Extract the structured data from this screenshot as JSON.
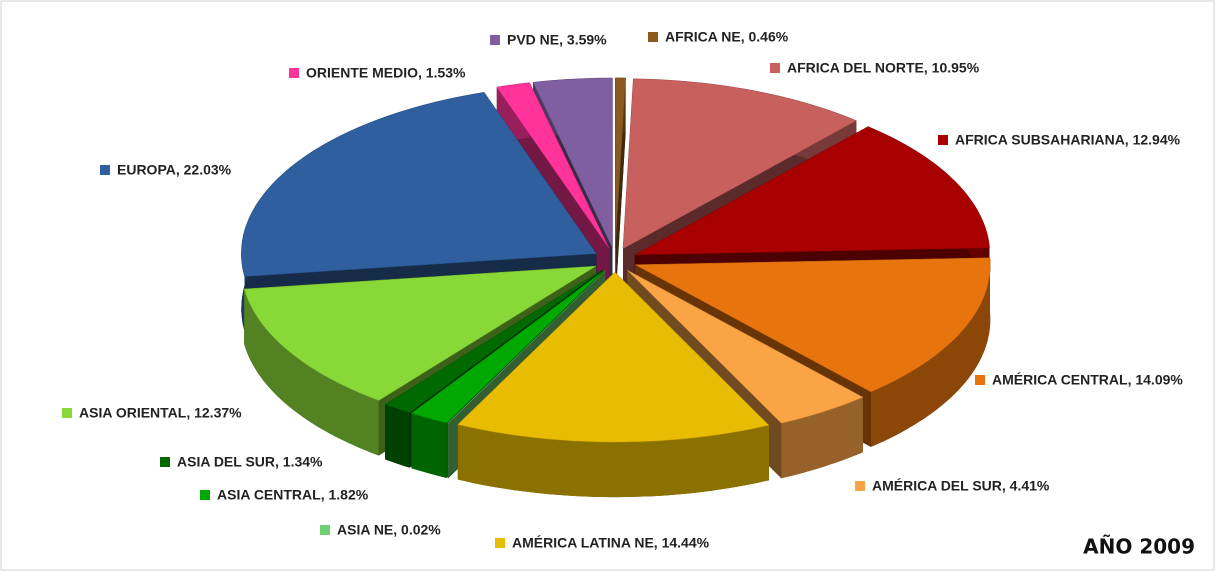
{
  "chart_data": {
    "type": "pie3d",
    "title": "AÑO 2009",
    "value_labels": [
      "AFRICA NE, 0.46%",
      "AFRICA DEL NORTE, 10.95%",
      "AFRICA SUBSAHARIANA, 12.94%",
      "AMÉRICA CENTRAL, 14.09%",
      "AMÉRICA DEL SUR, 4.41%",
      "AMÉRICA LATINA NE, 14.44%",
      "ASIA NE, 0.02%",
      "ASIA CENTRAL, 1.82%",
      "ASIA DEL SUR, 1.34%",
      "ASIA ORIENTAL, 12.37%",
      "EUROPA, 22.03%",
      "ORIENTE MEDIO, 1.53%",
      "PVD NE, 3.59%"
    ],
    "values": [
      0.46,
      10.95,
      12.94,
      14.09,
      4.41,
      14.44,
      0.02,
      1.82,
      1.34,
      12.37,
      22.03,
      1.53,
      3.59
    ],
    "colors": [
      "#8a5a1e",
      "#c8605e",
      "#a80000",
      "#e8740e",
      "#fba445",
      "#e8bc00",
      "#70d070",
      "#00a800",
      "#006a00",
      "#88d838",
      "#2f5f9f",
      "#ff3399",
      "#7f5f9f"
    ]
  }
}
